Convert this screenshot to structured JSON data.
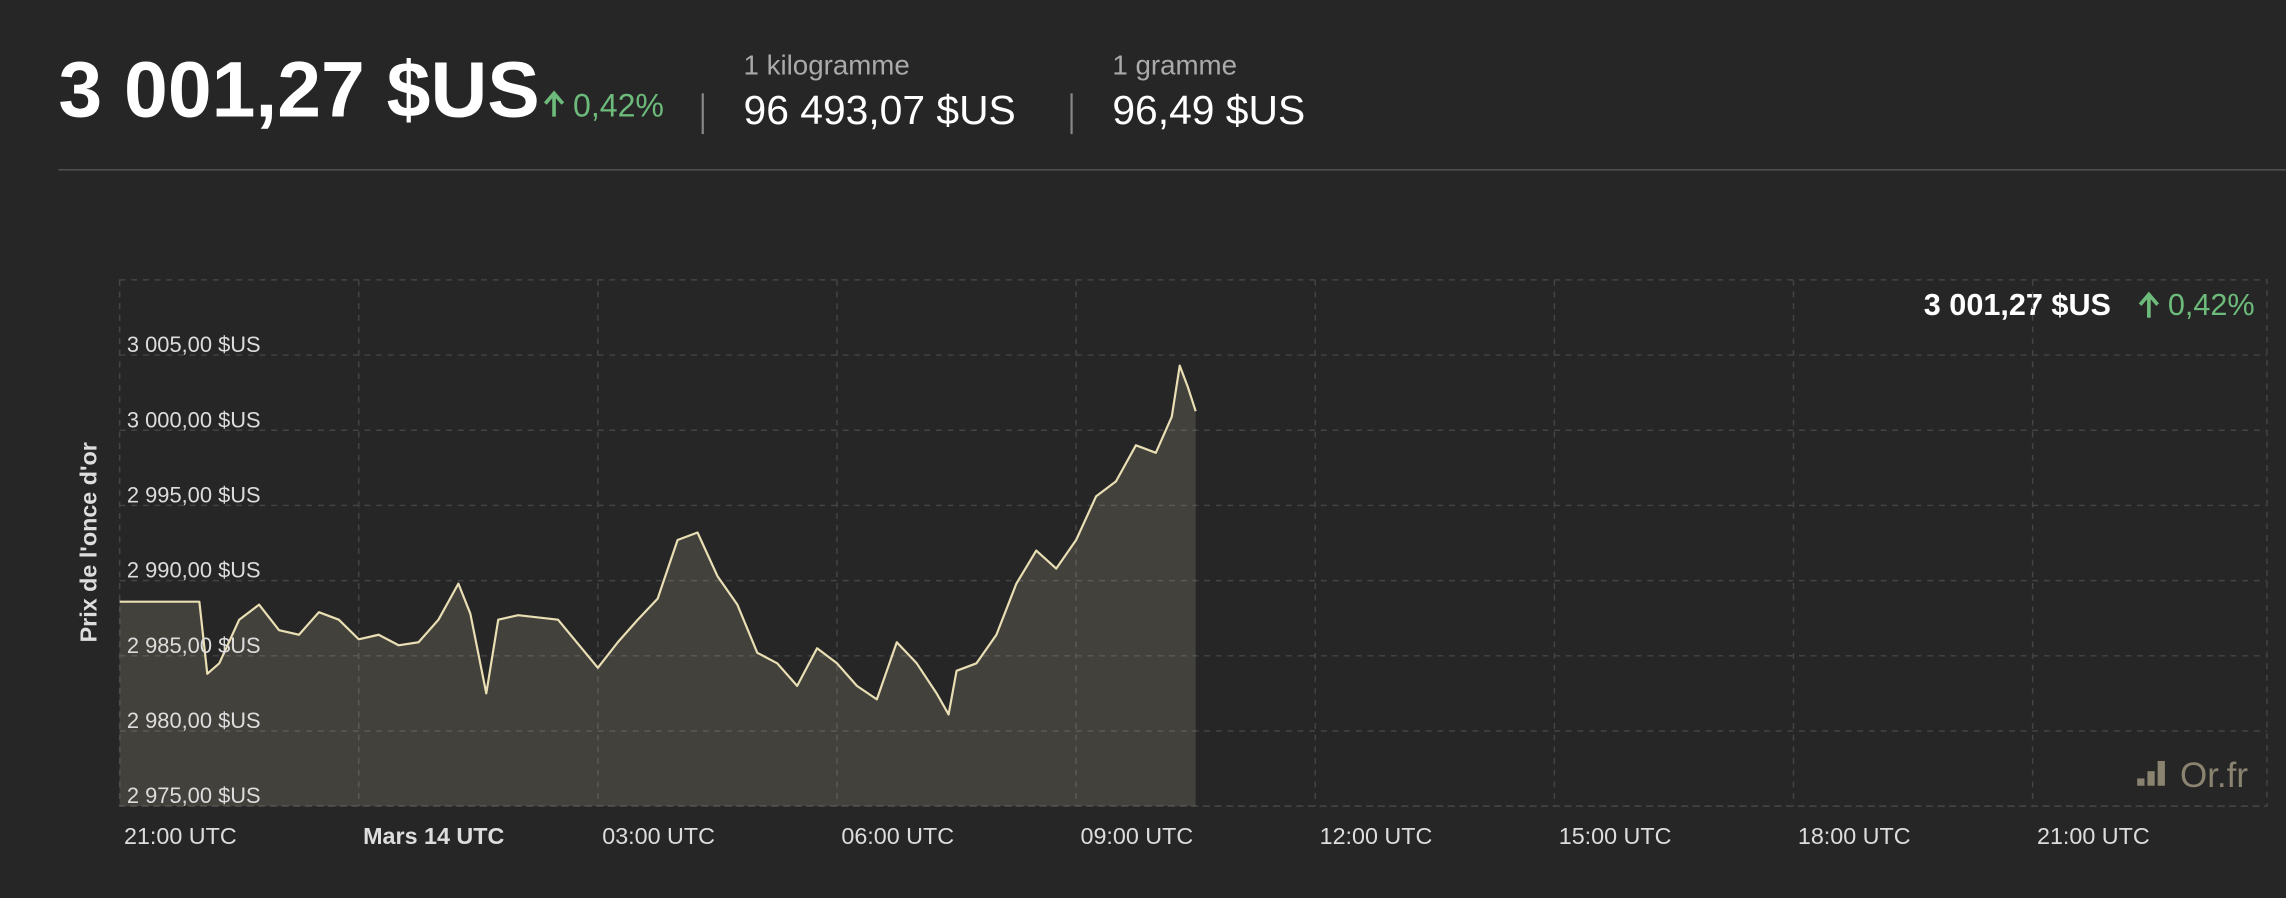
{
  "header": {
    "price": "3 001,27 $US",
    "change": "0,42%",
    "kilogram_label": "1 kilogramme",
    "kilogram_price": "96 493,07 $US",
    "gram_label": "1 gramme",
    "gram_price": "96,49 $US"
  },
  "chart_data": {
    "type": "line",
    "y_label": "Prix de l'once d'or",
    "last_price": "3 001,27 $US",
    "last_change": "0,42%",
    "watermark": "Or.fr",
    "color": "#eadfb4",
    "x": [
      0,
      0.5,
      1.0,
      1.1,
      1.25,
      1.5,
      1.75,
      2.0,
      2.25,
      2.5,
      2.75,
      3.0,
      3.25,
      3.5,
      3.75,
      4.0,
      4.25,
      4.4,
      4.6,
      4.75,
      5.0,
      5.5,
      6.0,
      6.25,
      6.5,
      6.75,
      7.0,
      7.25,
      7.5,
      7.75,
      8.0,
      8.25,
      8.5,
      8.75,
      9.0,
      9.25,
      9.5,
      9.75,
      10.0,
      10.25,
      10.4,
      10.5,
      10.75,
      11.0,
      11.25,
      11.5,
      11.75,
      12.0,
      12.25,
      12.5,
      12.75,
      13.0,
      13.2,
      13.3,
      13.4,
      13.5
    ],
    "values": [
      2988.6,
      2988.6,
      2988.6,
      2983.8,
      2984.5,
      2987.4,
      2988.4,
      2986.7,
      2986.4,
      2987.9,
      2987.4,
      2986.1,
      2986.4,
      2985.7,
      2985.9,
      2987.4,
      2989.8,
      2987.8,
      2982.5,
      2987.4,
      2987.7,
      2987.4,
      2984.2,
      2985.9,
      2987.4,
      2988.8,
      2992.7,
      2993.2,
      2990.3,
      2988.4,
      2985.2,
      2984.5,
      2983.0,
      2985.5,
      2984.5,
      2983.0,
      2982.1,
      2985.9,
      2984.5,
      2982.5,
      2981.1,
      2984.0,
      2984.5,
      2986.4,
      2989.8,
      2992.0,
      2990.8,
      2992.7,
      2995.6,
      2996.6,
      2999.0,
      2998.5,
      3000.9,
      3004.3,
      3002.9,
      3001.27
    ],
    "xlim": [
      0,
      26.94
    ],
    "xticks": [
      {
        "value": 0,
        "label": "21:00 UTC"
      },
      {
        "value": 3,
        "label": "Mars 14 UTC"
      },
      {
        "value": 6,
        "label": "03:00 UTC"
      },
      {
        "value": 9,
        "label": "06:00 UTC"
      },
      {
        "value": 12,
        "label": "09:00 UTC"
      },
      {
        "value": 15,
        "label": "12:00 UTC"
      },
      {
        "value": 18,
        "label": "15:00 UTC"
      },
      {
        "value": 21,
        "label": "18:00 UTC"
      },
      {
        "value": 24,
        "label": "21:00 UTC"
      }
    ],
    "ylim": [
      2975,
      3010
    ],
    "yticks": [
      {
        "value": 2975,
        "label": "2 975,00 $US"
      },
      {
        "value": 2980,
        "label": "2 980,00 $US"
      },
      {
        "value": 2985,
        "label": "2 985,00 $US"
      },
      {
        "value": 2990,
        "label": "2 990,00 $US"
      },
      {
        "value": 2995,
        "label": "2 995,00 $US"
      },
      {
        "value": 3000,
        "label": "3 000,00 $US"
      },
      {
        "value": 3005,
        "label": "3 005,00 $US"
      }
    ],
    "grid": true
  }
}
